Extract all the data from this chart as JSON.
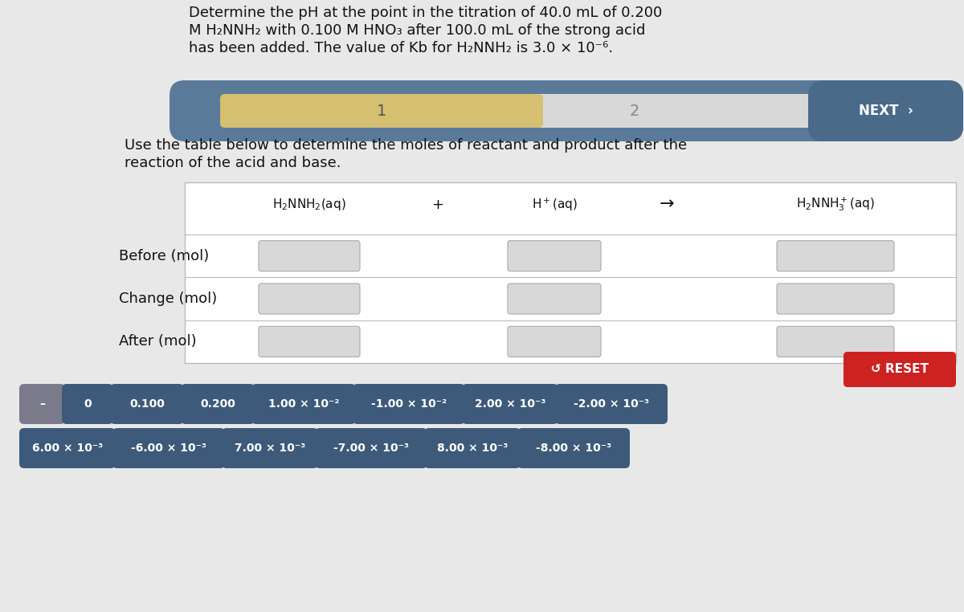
{
  "bg_color": "#e8e8e8",
  "title_text_line1": "Determine the pH at the point in the titration of 40.0 mL of 0.200",
  "title_text_line2": "M H₂NNH₂ with 0.100 M HNO₃ after 100.0 mL of the strong acid",
  "title_text_line3": "has been added. The value of Kb for H₂NNH₂ is 3.0 × 10⁻⁶.",
  "progress_bar_bg": "#5a7a9a",
  "progress_bar_middle": "#e8e8e8",
  "progress_bar_active_color": "#d4c070",
  "progress_step1": "1",
  "progress_step2": "2",
  "next_btn_color": "#4a6a8a",
  "next_btn_text": "NEXT  ›",
  "instruction_line1": "Use the table below to determine the moles of reactant and product after the",
  "instruction_line2": "reaction of the acid and base.",
  "row_labels": [
    "Before (mol)",
    "Change (mol)",
    "After (mol)"
  ],
  "reset_btn_color": "#cc2222",
  "reset_btn_text": "↺ RESET",
  "tile_color_dark": "#3d5a7a",
  "tile_color_gray": "#7a7a8a",
  "tile_labels_row1": [
    "–",
    "0",
    "0.100",
    "0.200",
    "1.00 × 10⁻²",
    "-1.00 × 10⁻²",
    "2.00 × 10⁻³",
    "-2.00 × 10⁻³"
  ],
  "tile_labels_row2": [
    "6.00 × 10⁻³",
    "-6.00 × 10⁻³",
    "7.00 × 10⁻³",
    "-7.00 × 10⁻³",
    "8.00 × 10⁻³",
    "-8.00 × 10⁻³"
  ]
}
